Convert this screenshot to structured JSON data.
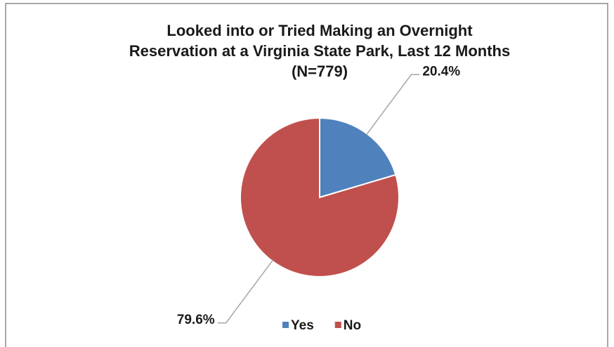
{
  "chart_data": {
    "type": "pie",
    "title": [
      "Looked into or Tried Making an Overnight",
      "Reservation at a Virginia State Park, Last 12 Months",
      "(N=779)"
    ],
    "categories": [
      "Yes",
      "No"
    ],
    "values": [
      20.4,
      79.6
    ],
    "value_labels": [
      "20.4%",
      "79.6%"
    ],
    "colors": [
      "#4f81bd",
      "#c0504d"
    ],
    "legend": "bottom"
  }
}
